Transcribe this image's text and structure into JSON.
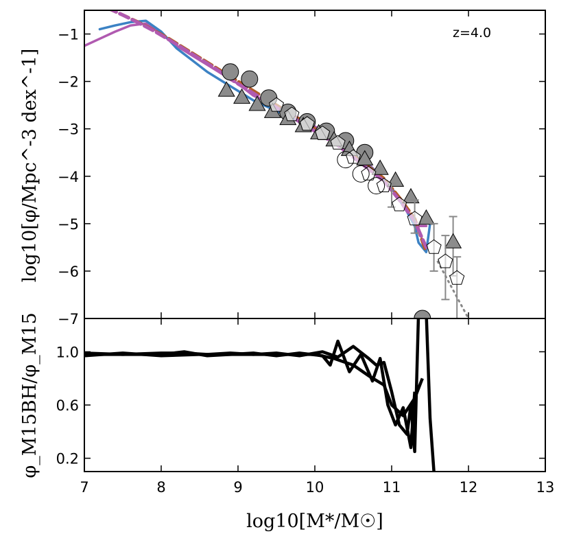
{
  "chart_data": [
    {
      "type": "line",
      "panel": "top",
      "annotation": "z=4.0",
      "ylabel": "log10[φ/Mpc^-3 dex^-1]",
      "xlim": [
        7,
        13
      ],
      "ylim": [
        -7,
        -0.5
      ],
      "xticks": [
        7,
        8,
        9,
        10,
        11,
        12,
        13
      ],
      "yticks": [
        -7,
        -6,
        -5,
        -4,
        -3,
        -2,
        -1
      ],
      "ytick_labels": [
        "−7",
        "−6",
        "−5",
        "−4",
        "−3",
        "−2",
        "−1"
      ],
      "series": [
        {
          "name": "model-purple-solid",
          "color": "#b05ab0",
          "style": "solid",
          "x": [
            7.0,
            7.2,
            7.4,
            7.6,
            7.8,
            8.0,
            8.2,
            8.4,
            8.6,
            8.8,
            9.0,
            9.2,
            9.4,
            9.6,
            9.8,
            10.0,
            10.2,
            10.4,
            10.6,
            10.8,
            11.0,
            11.2,
            11.3,
            11.45
          ],
          "y": [
            -1.25,
            -1.1,
            -0.95,
            -0.82,
            -0.78,
            -1.0,
            -1.25,
            -1.45,
            -1.65,
            -1.85,
            -2.05,
            -2.3,
            -2.45,
            -2.6,
            -2.78,
            -2.95,
            -3.15,
            -3.35,
            -3.6,
            -3.9,
            -4.25,
            -4.7,
            -5.05,
            -5.05
          ]
        },
        {
          "name": "model-blue-solid",
          "color": "#3c82c4",
          "style": "solid",
          "x": [
            7.2,
            7.4,
            7.6,
            7.8,
            8.0,
            8.2,
            8.4,
            8.6,
            8.8,
            9.0,
            9.2,
            9.4,
            9.6,
            9.8,
            10.0,
            10.2,
            10.4,
            10.6,
            10.8,
            11.0,
            11.2,
            11.3,
            11.35,
            11.45,
            11.5
          ],
          "y": [
            -0.9,
            -0.82,
            -0.75,
            -0.72,
            -0.95,
            -1.3,
            -1.55,
            -1.8,
            -2.0,
            -2.2,
            -2.4,
            -2.55,
            -2.7,
            -2.85,
            -3.0,
            -3.15,
            -3.4,
            -3.65,
            -3.9,
            -4.25,
            -4.75,
            -5.05,
            -5.4,
            -5.6,
            -5.0
          ]
        },
        {
          "name": "model-brown-dashed",
          "color": "#b25c2a",
          "style": "dashed",
          "x": [
            7.3,
            7.5,
            7.7,
            7.9,
            8.1,
            8.3,
            8.5,
            8.7,
            8.9,
            9.1,
            9.3,
            9.5,
            9.7,
            9.9,
            10.1,
            10.3,
            10.5,
            10.7,
            10.9,
            11.1,
            11.3,
            11.45
          ],
          "y": [
            -0.45,
            -0.6,
            -0.75,
            -0.92,
            -1.1,
            -1.3,
            -1.5,
            -1.7,
            -1.9,
            -2.1,
            -2.3,
            -2.5,
            -2.7,
            -2.9,
            -3.1,
            -3.3,
            -3.55,
            -3.8,
            -4.05,
            -4.45,
            -4.9,
            -5.6
          ]
        },
        {
          "name": "model-purple-dashed",
          "color": "#b05ab0",
          "style": "dashed",
          "x": [
            7.3,
            7.5,
            7.7,
            7.9,
            8.1,
            8.3,
            8.5,
            8.7,
            8.9,
            9.1,
            9.3,
            9.5,
            9.7,
            9.9,
            10.1,
            10.3,
            10.5,
            10.7,
            10.9,
            11.1,
            11.3,
            11.45
          ],
          "y": [
            -0.45,
            -0.6,
            -0.76,
            -0.93,
            -1.12,
            -1.32,
            -1.52,
            -1.72,
            -1.95,
            -2.15,
            -2.35,
            -2.55,
            -2.75,
            -2.95,
            -3.15,
            -3.35,
            -3.6,
            -3.85,
            -4.1,
            -4.5,
            -4.95,
            -5.5
          ]
        },
        {
          "name": "fit-grey-dotted",
          "color": "#888888",
          "style": "dotted",
          "x": [
            11.6,
            11.8,
            12.0
          ],
          "y": [
            -5.8,
            -6.4,
            -7.0
          ]
        }
      ],
      "observations": [
        {
          "name": "grey-circles",
          "marker": "circle",
          "fill": "#8c8c8c",
          "x": [
            8.9,
            9.15,
            9.4,
            9.65,
            9.9,
            10.15,
            10.4,
            10.65,
            11.4
          ],
          "y": [
            -1.8,
            -1.95,
            -2.35,
            -2.65,
            -2.85,
            -3.05,
            -3.25,
            -3.5,
            -7.0
          ]
        },
        {
          "name": "grey-triangles",
          "marker": "triangle",
          "fill": "#8c8c8c",
          "x": [
            8.85,
            9.05,
            9.25,
            9.45,
            9.65,
            9.85,
            10.05,
            10.25,
            10.45,
            10.65,
            10.85,
            11.05,
            11.25,
            11.45,
            11.8
          ],
          "y": [
            -2.2,
            -2.35,
            -2.5,
            -2.65,
            -2.8,
            -2.95,
            -3.1,
            -3.25,
            -3.45,
            -3.65,
            -3.85,
            -4.1,
            -4.45,
            -4.9,
            -5.4
          ],
          "err_y": [
            [
              11.8,
              -6.1,
              -4.85
            ]
          ]
        },
        {
          "name": "open-pentagons",
          "marker": "pentagon",
          "fill": "none",
          "x": [
            9.5,
            9.7,
            9.9,
            10.1,
            10.3,
            10.5,
            10.7,
            10.9,
            11.1,
            11.3,
            11.55,
            11.7,
            11.85
          ],
          "y": [
            -2.5,
            -2.7,
            -2.9,
            -3.1,
            -3.3,
            -3.6,
            -3.95,
            -4.2,
            -4.6,
            -4.9,
            -5.5,
            -5.8,
            -6.15
          ],
          "err_y": [
            [
              11.3,
              -5.2,
              -4.5
            ],
            [
              11.55,
              -6.0,
              -5.0
            ],
            [
              11.7,
              -6.6,
              -5.25
            ],
            [
              11.85,
              -7.0,
              -5.7
            ],
            [
              11.0,
              -4.65,
              -4.15
            ]
          ]
        },
        {
          "name": "open-circles",
          "marker": "circle",
          "fill": "none",
          "x": [
            10.4,
            10.6,
            10.8
          ],
          "y": [
            -3.65,
            -3.95,
            -4.2
          ]
        }
      ]
    },
    {
      "type": "line",
      "panel": "bottom",
      "xlabel": "log10[M*/M☉]",
      "ylabel": "φ_M15BH/φ_M15",
      "xlim": [
        7,
        13
      ],
      "ylim": [
        0.1,
        1.25
      ],
      "xticks": [
        7,
        8,
        9,
        10,
        11,
        12,
        13
      ],
      "yticks": [
        0.2,
        0.6,
        1.0
      ],
      "ytick_labels": [
        "0.2",
        "0.6",
        "1.0"
      ],
      "series": [
        {
          "name": "ratio-1",
          "color": "#000000",
          "x": [
            7.0,
            7.5,
            8.0,
            8.3,
            8.6,
            8.9,
            9.2,
            9.5,
            9.8,
            10.1,
            10.3,
            10.5,
            10.7,
            10.8,
            10.9,
            11.0,
            11.1,
            11.2,
            11.25,
            11.3,
            11.35,
            11.45,
            11.5,
            11.55
          ],
          "y": [
            0.98,
            0.98,
            0.99,
            0.99,
            0.98,
            0.99,
            0.98,
            0.99,
            0.97,
            1.0,
            0.96,
            1.04,
            0.95,
            0.9,
            0.92,
            0.7,
            0.45,
            0.38,
            0.6,
            0.25,
            1.3,
            1.3,
            0.5,
            0.1
          ]
        },
        {
          "name": "ratio-2",
          "color": "#000000",
          "x": [
            7.0,
            7.5,
            8.0,
            8.3,
            8.6,
            8.9,
            9.2,
            9.5,
            9.8,
            10.1,
            10.2,
            10.3,
            10.45,
            10.6,
            10.75,
            10.85,
            10.95,
            11.05,
            11.15,
            11.25,
            11.3
          ],
          "y": [
            0.99,
            0.98,
            0.98,
            1.0,
            0.97,
            0.98,
            0.99,
            0.97,
            0.99,
            0.97,
            0.9,
            1.08,
            0.85,
            0.98,
            0.78,
            0.95,
            0.6,
            0.45,
            0.58,
            0.28,
            0.7
          ]
        },
        {
          "name": "ratio-3",
          "color": "#000000",
          "x": [
            7.0,
            7.5,
            8.0,
            8.5,
            9.0,
            9.5,
            10.0,
            10.25,
            10.5,
            10.7,
            10.9,
            11.0,
            11.15,
            11.3,
            11.4
          ],
          "y": [
            0.97,
            0.99,
            0.97,
            0.98,
            0.98,
            0.98,
            0.98,
            0.95,
            0.9,
            0.82,
            0.75,
            0.6,
            0.52,
            0.65,
            0.8
          ]
        }
      ]
    }
  ]
}
